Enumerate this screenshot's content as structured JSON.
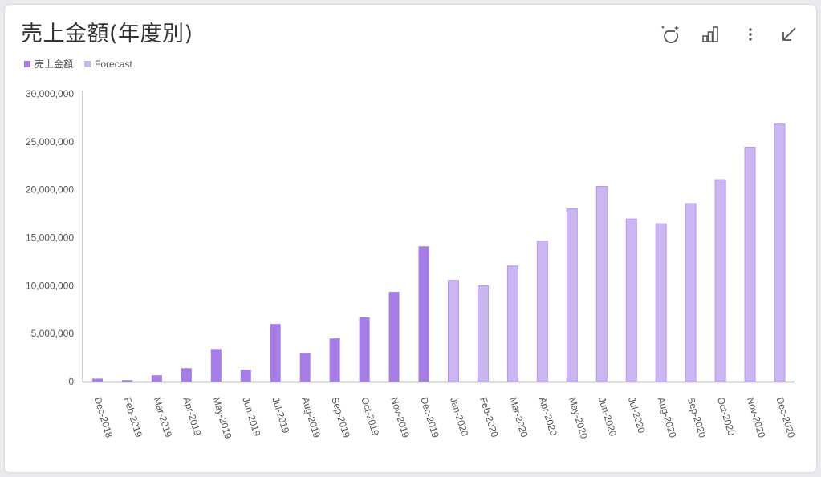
{
  "header": {
    "title": "売上金額(年度別)"
  },
  "toolbar": {
    "icons": [
      "sparkle-moon-icon",
      "bar-chart-icon",
      "more-vert-icon",
      "collapse-arrow-icon"
    ]
  },
  "legend": {
    "items": [
      {
        "label": "売上金額",
        "color": "#a67de4"
      },
      {
        "label": "Forecast",
        "color": "#cbb6f2"
      }
    ]
  },
  "colors": {
    "actual": "#a67de4",
    "forecast": "#cbb6f2",
    "forecast_border": "#b795ea"
  },
  "chart_data": {
    "type": "bar",
    "categories": [
      "Dec-2018",
      "Feb-2019",
      "Mar-2019",
      "Apr-2019",
      "May-2019",
      "Jun-2019",
      "Jul-2019",
      "Aug-2019",
      "Sep-2019",
      "Oct-2019",
      "Nov-2019",
      "Dec-2019",
      "Jan-2020",
      "Feb-2020",
      "Mar-2020",
      "Apr-2020",
      "May-2020",
      "Jun-2020",
      "Jul-2020",
      "Aug-2020",
      "Sep-2020",
      "Oct-2020",
      "Nov-2020",
      "Dec-2020"
    ],
    "series": [
      {
        "name": "売上金額",
        "values": [
          300000,
          150000,
          650000,
          1400000,
          3400000,
          1250000,
          6000000,
          3000000,
          4500000,
          6700000,
          9350000,
          14100000,
          null,
          null,
          null,
          null,
          null,
          null,
          null,
          null,
          null,
          null,
          null,
          null
        ]
      },
      {
        "name": "Forecast",
        "values": [
          null,
          null,
          null,
          null,
          null,
          null,
          null,
          null,
          null,
          null,
          null,
          null,
          10550000,
          10000000,
          12050000,
          14650000,
          18000000,
          20350000,
          16950000,
          16450000,
          18550000,
          21050000,
          24450000,
          26850000
        ]
      }
    ],
    "yticks": [
      "0",
      "5,000,000",
      "10,000,000",
      "15,000,000",
      "20,000,000",
      "25,000,000",
      "30,000,000"
    ],
    "ylim": [
      0,
      30000000
    ],
    "legend_position": "top-left",
    "grid": false
  }
}
